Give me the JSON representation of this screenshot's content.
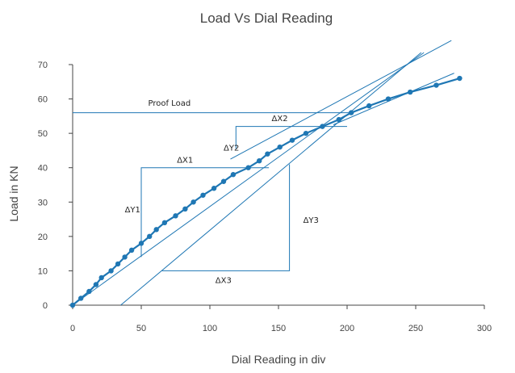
{
  "chart_data": {
    "type": "line",
    "title": "Load Vs Dial Reading",
    "xlabel": "Dial Reading in div",
    "ylabel": "Load in KN",
    "xlim": [
      0,
      300
    ],
    "ylim": [
      0,
      70
    ],
    "x_ticks": [
      0,
      50,
      100,
      150,
      200,
      250,
      300
    ],
    "y_ticks": [
      0,
      10,
      20,
      30,
      40,
      50,
      60,
      70
    ],
    "grid": false,
    "series": [
      {
        "color": "#1f77b4",
        "x": [
          0,
          6,
          12,
          17,
          21,
          28,
          33,
          38,
          43,
          50,
          56,
          61,
          67,
          75,
          82,
          88,
          95,
          103,
          110,
          117,
          128,
          136,
          142,
          151,
          160,
          170,
          182,
          194,
          203,
          216,
          230,
          246,
          265,
          282
        ],
        "y": [
          0,
          2,
          4,
          6,
          8,
          10,
          12,
          14,
          16,
          18,
          20,
          22,
          24,
          26,
          28,
          30,
          32,
          34,
          36,
          38,
          40,
          42,
          44,
          46,
          48,
          50,
          52,
          54,
          56,
          58,
          60,
          62,
          64,
          66
        ]
      }
    ],
    "reference_lines": [
      {
        "x": [
          0,
          256
        ],
        "y": [
          0,
          73.5
        ]
      },
      {
        "x": [
          35,
          254
        ],
        "y": [
          0,
          73.5
        ]
      },
      {
        "x": [
          115,
          276
        ],
        "y": [
          42.5,
          77
        ]
      },
      {
        "x": [
          190,
          278
        ],
        "y": [
          52.5,
          67.5
        ]
      }
    ],
    "construction_lines": [
      {
        "x": [
          0,
          205
        ],
        "y": [
          56,
          56
        ]
      },
      {
        "x": [
          50,
          50,
          143
        ],
        "y": [
          14,
          40,
          40
        ]
      },
      {
        "x": [
          119,
          119,
          200
        ],
        "y": [
          45.5,
          52,
          52
        ]
      },
      {
        "x": [
          158,
          158,
          65
        ],
        "y": [
          41,
          10,
          10
        ]
      }
    ],
    "annotations": [
      {
        "text": "Proof Load",
        "x": 55,
        "y": 58
      },
      {
        "text": "ΔX1",
        "x": 76,
        "y": 41.5
      },
      {
        "text": "ΔY1",
        "x": 38,
        "y": 27
      },
      {
        "text": "ΔX2",
        "x": 145,
        "y": 53.5
      },
      {
        "text": "ΔY2",
        "x": 110,
        "y": 45
      },
      {
        "text": "ΔX3",
        "x": 104,
        "y": 6.5
      },
      {
        "text": "ΔY3",
        "x": 168,
        "y": 24
      }
    ]
  }
}
